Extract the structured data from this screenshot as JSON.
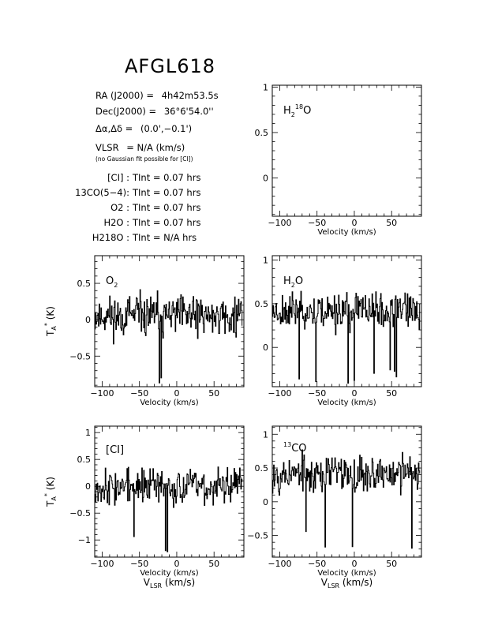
{
  "page_title": "AFGL618",
  "info": {
    "ra_label": "RA (J2000) =",
    "ra_value": "4h42m53.5s",
    "dec_label": "Dec(J2000) =",
    "dec_value": "36°6'54.0''",
    "offset_label": "Δα,Δδ =",
    "offset_value": "(0.0',−0.1')",
    "vlsr_label": "VLSR",
    "vlsr_value": "= N/A  (km/s)",
    "fit_note": "(no Gaussian fit possible for [CI])",
    "integrations": [
      {
        "line": "[CI] :",
        "value": "TInt = 0.07 hrs"
      },
      {
        "line": "13CO(5−4):",
        "value": "TInt = 0.07 hrs"
      },
      {
        "line": "O2 :",
        "value": "TInt = 0.07 hrs"
      },
      {
        "line": "H2O :",
        "value": "TInt = 0.07 hrs"
      },
      {
        "line": "H218O :",
        "value": "TInt = N/A hrs"
      }
    ]
  },
  "chart_data": [
    {
      "id": "h218o",
      "type": "line",
      "label": "H218O",
      "xlabel": "Velocity (km/s)",
      "xlim": [
        -110,
        90
      ],
      "ylim": [
        -0.42,
        1.02
      ],
      "xticks": [
        -100,
        -50,
        0,
        50
      ],
      "yticks": [
        0,
        0.5,
        1
      ],
      "ytick_labels": [
        "0",
        "0.5",
        "1"
      ],
      "x": [],
      "y": []
    },
    {
      "id": "o2",
      "type": "line",
      "label": "O2",
      "xlabel": "Velocity (km/s)",
      "ylabel": "TA* (K)",
      "xlim": [
        -110,
        90
      ],
      "ylim": [
        -0.92,
        0.88
      ],
      "xticks": [
        -100,
        -50,
        0,
        50
      ],
      "yticks": [
        -0.5,
        0,
        0.5
      ],
      "ytick_labels": [
        "−0.5",
        "0",
        "0.5"
      ],
      "noise_center": 0.05,
      "noise_amp": 0.3,
      "x_start": -110,
      "x_end": 88,
      "step": 0.83,
      "seed": 11
    },
    {
      "id": "h2o",
      "type": "line",
      "label": "H2O",
      "xlabel": "Velocity (km/s)",
      "xlim": [
        -110,
        90
      ],
      "ylim": [
        -0.45,
        1.05
      ],
      "xticks": [
        -100,
        -50,
        0,
        50
      ],
      "yticks": [
        0,
        0.5,
        1
      ],
      "ytick_labels": [
        "0",
        "0.5",
        "1"
      ],
      "noise_center": 0.42,
      "noise_amp": 0.22,
      "x_start": -110,
      "x_end": 88,
      "step": 0.83,
      "seed": 23
    },
    {
      "id": "ci",
      "type": "line",
      "label": "[CI]",
      "xlabel": "Velocity (km/s)",
      "ylabel": "TA* (K)",
      "xlabel2": "VLSR (km/s)",
      "xlim": [
        -110,
        90
      ],
      "ylim": [
        -1.32,
        1.12
      ],
      "xticks": [
        -100,
        -50,
        0,
        50
      ],
      "yticks": [
        -1,
        -0.5,
        0,
        0.5,
        1
      ],
      "ytick_labels": [
        "−1",
        "−0.5",
        "0",
        "0.5",
        "1"
      ],
      "noise_center": 0.0,
      "noise_amp": 0.35,
      "x_start": -110,
      "x_end": 88,
      "step": 0.83,
      "seed": 37
    },
    {
      "id": "co",
      "type": "line",
      "label": "13CO",
      "xlabel": "Velocity (km/s)",
      "xlabel2": "VLSR (km/s)",
      "xlim": [
        -110,
        90
      ],
      "ylim": [
        -0.82,
        1.12
      ],
      "xticks": [
        -100,
        -50,
        0,
        50
      ],
      "yticks": [
        -0.5,
        0,
        0.5,
        1
      ],
      "ytick_labels": [
        "−0.5",
        "0",
        "0.5",
        "1"
      ],
      "noise_center": 0.42,
      "noise_amp": 0.3,
      "x_start": -110,
      "x_end": 88,
      "step": 0.83,
      "seed": 53
    }
  ]
}
